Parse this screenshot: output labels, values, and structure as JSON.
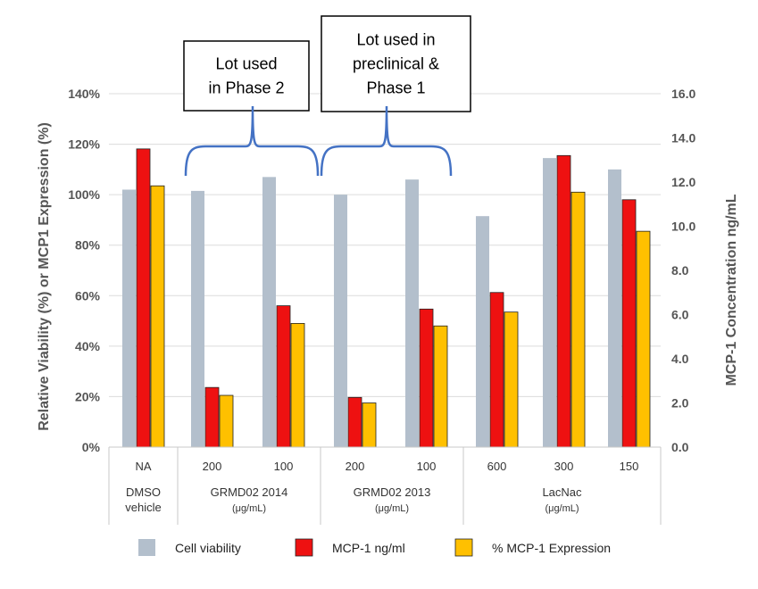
{
  "chart_data": {
    "type": "bar",
    "ylabel": "Relative Viability (%) or MCP1 Expression (%)",
    "y2label": "MCP-1 Concentration ng/mL",
    "ylim": [
      0,
      140
    ],
    "y2lim": [
      0,
      16
    ],
    "yticks": [
      "0%",
      "20%",
      "40%",
      "60%",
      "80%",
      "100%",
      "120%",
      "140%"
    ],
    "y2ticks": [
      "0.0",
      "2.0",
      "4.0",
      "6.0",
      "8.0",
      "10.0",
      "12.0",
      "14.0",
      "16.0"
    ],
    "grid": true,
    "legend_position": "bottom",
    "categories": [
      "NA",
      "200",
      "100",
      "200",
      "100",
      "600",
      "300",
      "150"
    ],
    "groups": [
      {
        "lines": [
          "DMSO",
          "vehicle"
        ],
        "unit": ""
      },
      {
        "lines": [
          "GRMD02 2014"
        ],
        "unit": "(μg/mL)"
      },
      {
        "lines": [
          "GRMD02 2013"
        ],
        "unit": "(μg/mL)"
      },
      {
        "lines": [
          "LacNac"
        ],
        "unit": "(μg/mL)"
      }
    ],
    "series": [
      {
        "name": "Cell viability",
        "axis": "left",
        "color": "#b3bfcc",
        "values": [
          102,
          101.5,
          107,
          100,
          106,
          91.5,
          114.5,
          110
        ]
      },
      {
        "name": "MCP-1 ng/ml",
        "axis": "right",
        "color": "#ee1111",
        "values": [
          13.5,
          2.7,
          6.4,
          2.25,
          6.25,
          7.0,
          13.2,
          11.2
        ]
      },
      {
        "name": "% MCP-1 Expression",
        "axis": "left",
        "color": "#ffc000",
        "values": [
          103.5,
          20.5,
          49,
          17.5,
          48,
          53.5,
          101,
          85.5
        ]
      }
    ],
    "annotations": [
      {
        "lines": [
          "Lot used",
          "in Phase 2"
        ]
      },
      {
        "lines": [
          "Lot used in",
          "preclinical  &",
          "Phase 1"
        ]
      }
    ]
  }
}
